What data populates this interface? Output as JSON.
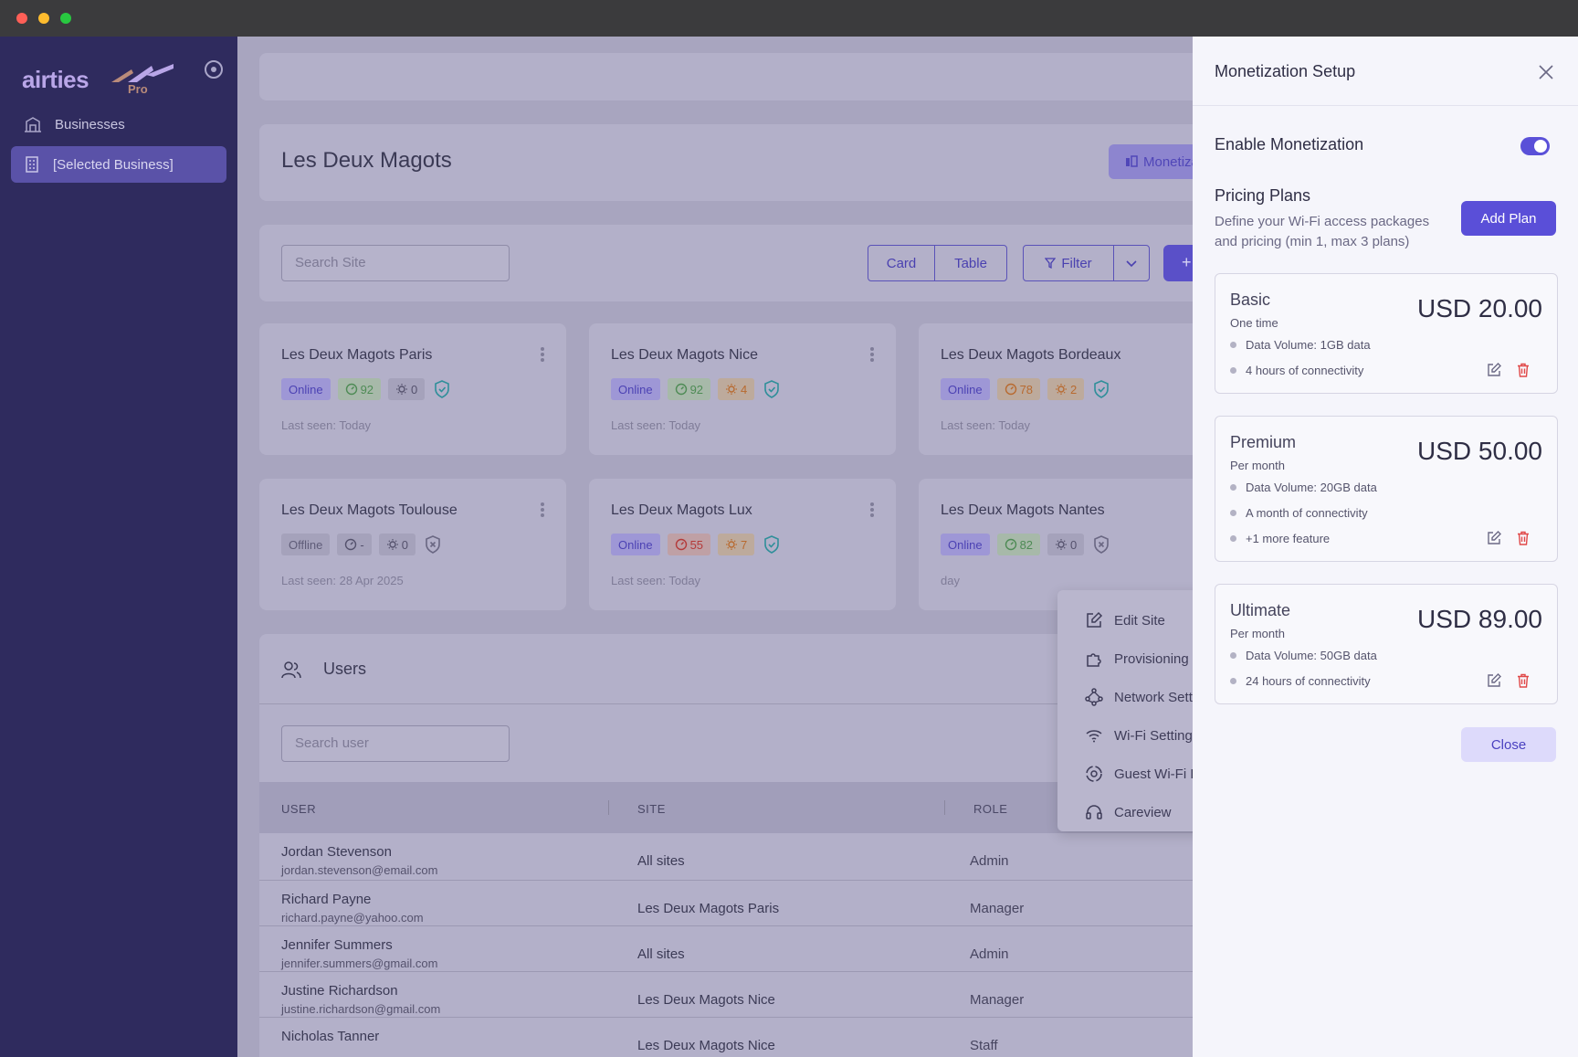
{
  "sidebar": {
    "logo_text": "airties",
    "logo_pro": "Pro",
    "items": [
      {
        "label": "Businesses"
      },
      {
        "label": "[Selected Business]"
      }
    ]
  },
  "header": {
    "title": "Les Deux Magots",
    "monetization_label": "Monetizati"
  },
  "toolbar": {
    "search_placeholder": "Search Site",
    "view_card": "Card",
    "view_table": "Table",
    "filter_label": "Filter",
    "add_label": "+"
  },
  "sites": [
    {
      "name": "Les Deux Magots Paris",
      "status": "Online",
      "score": "92",
      "score_tone": "green",
      "alerts": "0",
      "alert_tone": "grey",
      "shield": "ok",
      "last_seen": "Last seen: Today"
    },
    {
      "name": "Les Deux Magots Nice",
      "status": "Online",
      "score": "92",
      "score_tone": "green",
      "alerts": "4",
      "alert_tone": "orange",
      "shield": "ok",
      "last_seen": "Last seen: Today"
    },
    {
      "name": "Les Deux Magots Bordeaux",
      "status": "Online",
      "score": "78",
      "score_tone": "orange",
      "alerts": "2",
      "alert_tone": "orange",
      "shield": "ok",
      "last_seen": "Last seen: Today"
    },
    {
      "name": "Les Deux Magots Toulouse",
      "status": "Offline",
      "score": "-",
      "score_tone": "grey",
      "alerts": "0",
      "alert_tone": "grey",
      "shield": "bad",
      "last_seen": "Last seen: 28 Apr 2025"
    },
    {
      "name": "Les Deux Magots Lux",
      "status": "Online",
      "score": "55",
      "score_tone": "red",
      "alerts": "7",
      "alert_tone": "orange",
      "shield": "ok",
      "last_seen": "Last seen: Today"
    },
    {
      "name": "Les Deux Magots Nantes",
      "status": "Online",
      "score": "82",
      "score_tone": "green",
      "alerts": "0",
      "alert_tone": "grey",
      "shield": "bad",
      "last_seen": "day"
    }
  ],
  "context_menu": {
    "items": [
      {
        "label": "Edit Site"
      },
      {
        "label": "Provisioning"
      },
      {
        "label": "Network Settings"
      },
      {
        "label": "Wi-Fi Settings"
      },
      {
        "label": "Guest Wi-Fi Portal"
      },
      {
        "label": "Careview"
      }
    ]
  },
  "users": {
    "title": "Users",
    "search_placeholder": "Search user",
    "columns": [
      "USER",
      "SITE",
      "ROLE"
    ],
    "rows": [
      {
        "name": "Jordan Stevenson",
        "email": "jordan.stevenson@email.com",
        "site": "All sites",
        "role": "Admin"
      },
      {
        "name": "Richard Payne",
        "email": "richard.payne@yahoo.com",
        "site": "Les Deux Magots Paris",
        "role": "Manager"
      },
      {
        "name": "Jennifer Summers",
        "email": "jennifer.summers@gmail.com",
        "site": "All sites",
        "role": "Admin"
      },
      {
        "name": "Justine Richardson",
        "email": "justine.richardson@gmail.com",
        "site": "Les Deux Magots Nice",
        "role": "Manager"
      },
      {
        "name": "Nicholas Tanner",
        "email": "",
        "site": "Les Deux Magots Nice",
        "role": "Staff"
      }
    ]
  },
  "drawer": {
    "title": "Monetization Setup",
    "enable_label": "Enable Monetization",
    "enabled": true,
    "plans_title": "Pricing Plans",
    "plans_desc": "Define your Wi-Fi access packages and pricing (min 1, max 3 plans)",
    "add_plan_label": "Add Plan",
    "plans": [
      {
        "name": "Basic",
        "period": "One time",
        "price": "USD 20.00",
        "features": [
          "Data Volume: 1GB data",
          "4 hours of connectivity"
        ]
      },
      {
        "name": "Premium",
        "period": "Per month",
        "price": "USD 50.00",
        "features": [
          "Data Volume: 20GB data",
          "A month of connectivity",
          "+1 more feature"
        ]
      },
      {
        "name": "Ultimate",
        "period": "Per month",
        "price": "USD 89.00",
        "features": [
          "Data Volume: 50GB data",
          "24 hours of connectivity"
        ]
      }
    ],
    "close_label": "Close"
  },
  "colors": {
    "accent": "#5a4fd8",
    "sidebar": "#2f2b5e",
    "danger": "#e04848"
  }
}
